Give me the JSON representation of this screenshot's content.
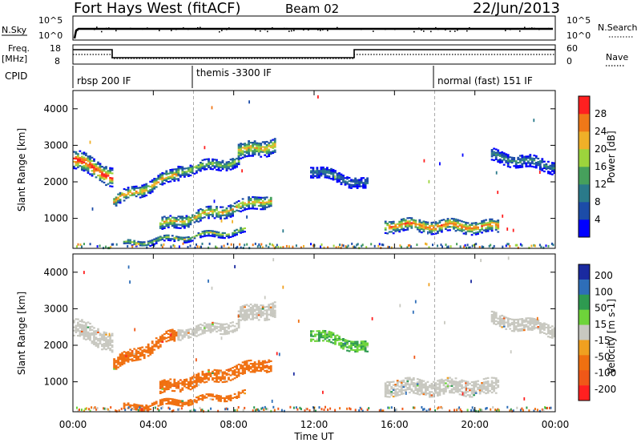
{
  "header": {
    "radar": "Fort Hays West (fitACF)",
    "beam": "Beam 02",
    "date": "22/Jun/2013"
  },
  "strip": {
    "nsky_label": "N.Sky",
    "nsky_ticks": [
      "10^5",
      "10^0"
    ],
    "nsearch_label": "N.Search",
    "freq_label_1": "Freq.",
    "freq_label_2": "[MHz]",
    "freq_ticks": [
      "18",
      "8"
    ],
    "nave_label": "Nave",
    "nave_ticks": [
      "60",
      "0"
    ],
    "cpid_label": "CPID",
    "cpid_modes": [
      "rbsp 200 IF",
      "themis -3300 IF",
      "normal (fast) 151 IF"
    ]
  },
  "colors": {
    "power_scale": [
      "#0000ff",
      "#1c4ca8",
      "#2a7a8a",
      "#46a05c",
      "#9cd43c",
      "#f0b028",
      "#f07818",
      "#ff2020"
    ],
    "velocity_scale": [
      "#1a2aa0",
      "#2e6eb8",
      "#2e9a50",
      "#6ed43a",
      "#c8c8c0",
      "#f0a020",
      "#f07010",
      "#f05818",
      "#ff2020"
    ]
  },
  "chart_data": [
    {
      "type": "heatmap",
      "title": "Power",
      "xlabel": "Time UT",
      "ylabel": "Slant Range [km]",
      "x_ticks": [
        "00:00",
        "04:00",
        "08:00",
        "12:00",
        "16:00",
        "20:00",
        "00:00"
      ],
      "xlim_hours": [
        0,
        24
      ],
      "ylim": [
        180,
        4500
      ],
      "y_ticks": [
        "1000",
        "2000",
        "3000",
        "4000"
      ],
      "colorbar_label": "Power [dB]",
      "colorbar_ticks": [
        "4",
        "8",
        "12",
        "16",
        "20",
        "24",
        "28"
      ],
      "mode_change_hours": [
        6.0,
        18.0
      ],
      "scatter_bands": [
        {
          "t_start": 0.0,
          "t_end": 2.0,
          "range_start": 2600,
          "range_end": 2100,
          "width": 500,
          "core": 28
        },
        {
          "t_start": 2.0,
          "t_end": 5.2,
          "range_start": 1450,
          "range_end": 2200,
          "width": 320,
          "core": 22
        },
        {
          "t_start": 5.2,
          "t_end": 8.2,
          "range_start": 2300,
          "range_end": 2550,
          "width": 300,
          "core": 16
        },
        {
          "t_start": 8.2,
          "t_end": 10.0,
          "range_start": 2800,
          "range_end": 3000,
          "width": 450,
          "core": 20
        },
        {
          "t_start": 4.3,
          "t_end": 9.8,
          "range_start": 800,
          "range_end": 1500,
          "width": 350,
          "core": 20
        },
        {
          "t_start": 2.5,
          "t_end": 8.5,
          "range_start": 280,
          "range_end": 650,
          "width": 180,
          "core": 16
        },
        {
          "t_start": 11.8,
          "t_end": 14.6,
          "range_start": 2300,
          "range_end": 1900,
          "width": 300,
          "core": 10
        },
        {
          "t_start": 15.5,
          "t_end": 21.2,
          "range_start": 800,
          "range_end": 750,
          "width": 350,
          "core": 24
        },
        {
          "t_start": 20.8,
          "t_end": 24.0,
          "range_start": 2700,
          "range_end": 2400,
          "width": 350,
          "core": 12
        }
      ]
    },
    {
      "type": "heatmap",
      "title": "Velocity",
      "xlabel": "Time UT",
      "ylabel": "Slant Range [km]",
      "x_ticks": [
        "00:00",
        "04:00",
        "08:00",
        "12:00",
        "16:00",
        "20:00",
        "00:00"
      ],
      "xlim_hours": [
        0,
        24
      ],
      "ylim": [
        180,
        4500
      ],
      "y_ticks": [
        "1000",
        "2000",
        "3000",
        "4000"
      ],
      "colorbar_label": "Velocity [m s-1]",
      "colorbar_ticks": [
        "200",
        "100",
        "50",
        "15",
        "-15",
        "-50",
        "-100",
        "-200"
      ],
      "mode_change_hours": [
        6.0,
        18.0
      ],
      "scatter_bands": [
        {
          "t_start": 0.0,
          "t_end": 2.0,
          "range_start": 2450,
          "range_end": 2050,
          "width": 500,
          "velocity": 0
        },
        {
          "t_start": 2.0,
          "t_end": 5.2,
          "range_start": 1450,
          "range_end": 2300,
          "width": 320,
          "velocity": -60
        },
        {
          "t_start": 5.2,
          "t_end": 8.2,
          "range_start": 2300,
          "range_end": 2550,
          "width": 300,
          "velocity": 0
        },
        {
          "t_start": 8.2,
          "t_end": 10.0,
          "range_start": 2800,
          "range_end": 3000,
          "width": 450,
          "velocity": 0
        },
        {
          "t_start": 4.3,
          "t_end": 9.8,
          "range_start": 800,
          "range_end": 1500,
          "width": 350,
          "velocity": -60
        },
        {
          "t_start": 2.5,
          "t_end": 8.5,
          "range_start": 280,
          "range_end": 650,
          "width": 180,
          "velocity": -60
        },
        {
          "t_start": 11.8,
          "t_end": 14.6,
          "range_start": 2300,
          "range_end": 1900,
          "width": 300,
          "velocity": 30
        },
        {
          "t_start": 15.5,
          "t_end": 21.2,
          "range_start": 850,
          "range_end": 850,
          "width": 450,
          "velocity": 0
        },
        {
          "t_start": 20.8,
          "t_end": 24.0,
          "range_start": 2700,
          "range_end": 2400,
          "width": 350,
          "velocity": 0
        }
      ]
    }
  ]
}
